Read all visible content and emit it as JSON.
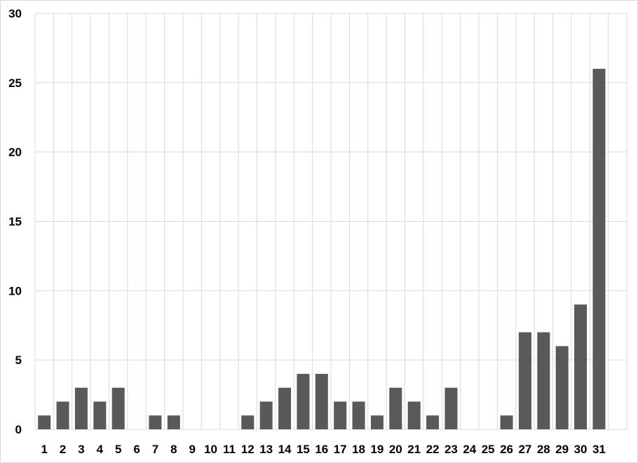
{
  "chart_data": {
    "type": "bar",
    "title": "",
    "xlabel": "",
    "ylabel": "",
    "categories": [
      "1",
      "2",
      "3",
      "4",
      "5",
      "6",
      "7",
      "8",
      "9",
      "10",
      "11",
      "12",
      "13",
      "14",
      "15",
      "16",
      "17",
      "18",
      "19",
      "20",
      "21",
      "22",
      "23",
      "24",
      "25",
      "26",
      "27",
      "28",
      "29",
      "30",
      "31"
    ],
    "values": [
      1,
      2,
      3,
      2,
      3,
      0,
      1,
      1,
      0,
      0,
      0,
      1,
      2,
      3,
      4,
      4,
      2,
      2,
      1,
      3,
      2,
      1,
      3,
      0,
      0,
      1,
      7,
      7,
      6,
      9,
      26
    ],
    "ylim": [
      0,
      30
    ],
    "yticks": [
      "0",
      "5",
      "10",
      "15",
      "20",
      "25",
      "30"
    ],
    "grid": true,
    "legend": "none",
    "bar_color": "#595959",
    "grid_color": "#d9d9d9"
  }
}
